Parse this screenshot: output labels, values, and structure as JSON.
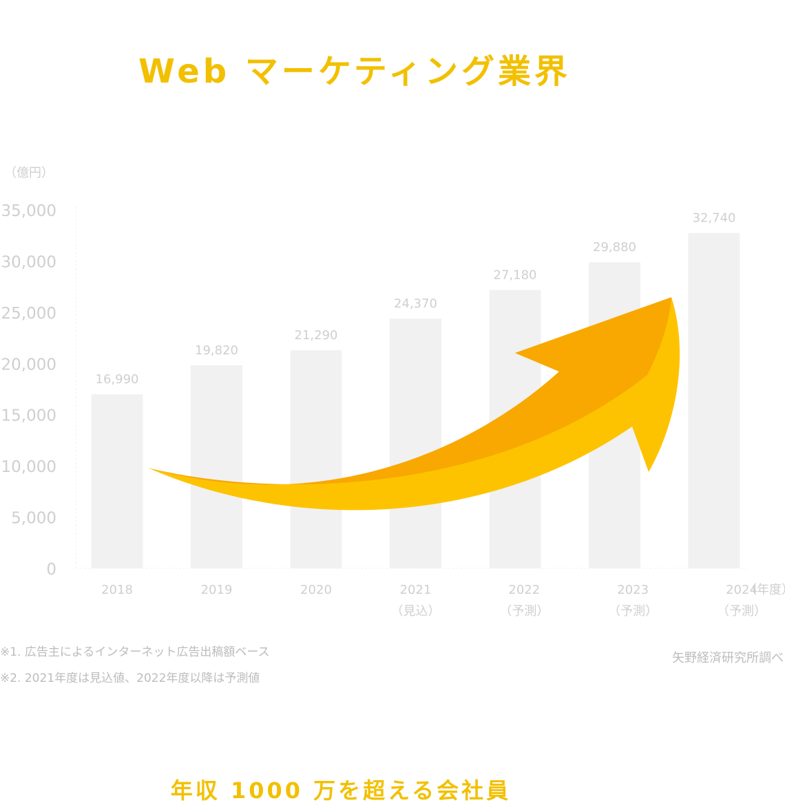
{
  "header": {
    "title": "Web マーケティング業界"
  },
  "footer": {
    "title": "年収 1000 万を超える会社員"
  },
  "notes": [
    "※1. 広告主によるインターネット広告出稿額ベース",
    "※2. 2021年度は見込値、2022年度以降は予測値"
  ],
  "source": "矢野経済研究所調べ",
  "colors": {
    "title": "#F2C000",
    "bar": "#F1F1F1",
    "label": "#cfcfcf",
    "arrow_dark": "#F8A800",
    "arrow_light": "#FDC300"
  },
  "chart_data": {
    "type": "bar",
    "title": "",
    "ylabel": "（億円）",
    "xlabel": "（年度）",
    "ylim": [
      0,
      35000
    ],
    "yticks": [
      "0",
      "5,000",
      "10,000",
      "15,000",
      "20,000",
      "25,000",
      "30,000",
      "35,000"
    ],
    "categories": [
      "2018",
      "2019",
      "2020",
      "2021",
      "2022",
      "2023",
      "2024"
    ],
    "category_notes": [
      "",
      "",
      "",
      "（見込）",
      "（予測）",
      "（予測）",
      "（予測）"
    ],
    "values": [
      16990,
      19820,
      21290,
      24370,
      27180,
      29880,
      32740
    ],
    "value_labels": [
      "16,990",
      "19,820",
      "21,290",
      "24,370",
      "27,180",
      "29,880",
      "32,740"
    ],
    "grid": false,
    "annotation": "upward-trend-arrow-icon"
  }
}
